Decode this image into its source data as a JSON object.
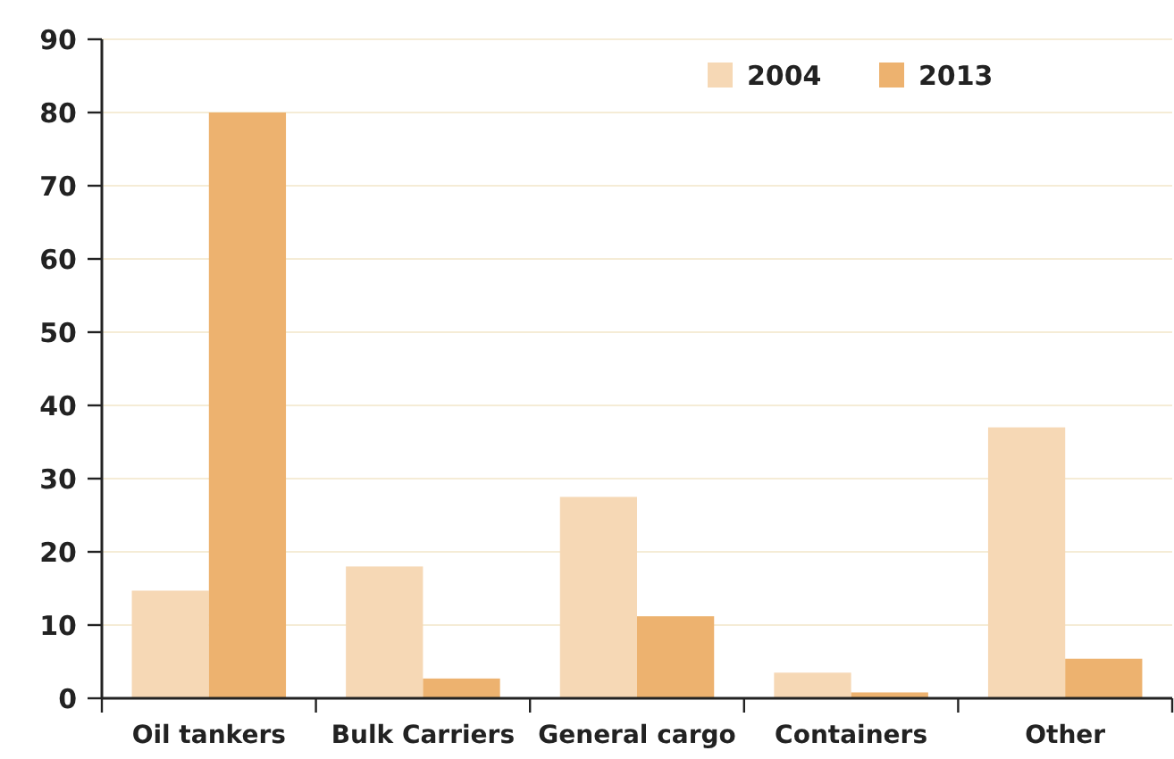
{
  "chart_data": {
    "type": "bar",
    "categories": [
      "Oil tankers",
      "Bulk Carriers",
      "General cargo",
      "Containers",
      "Other"
    ],
    "series": [
      {
        "name": "2004",
        "color": "#f6d8b5",
        "values": [
          14.7,
          18.0,
          27.5,
          3.5,
          37
        ]
      },
      {
        "name": "2013",
        "color": "#edb26f",
        "values": [
          80,
          2.7,
          11.2,
          0.8,
          5.4
        ]
      }
    ],
    "ylim": [
      0,
      90
    ],
    "yticks": [
      0,
      10,
      20,
      30,
      40,
      50,
      60,
      70,
      80,
      90
    ],
    "grid": "y",
    "legend": "top right"
  }
}
